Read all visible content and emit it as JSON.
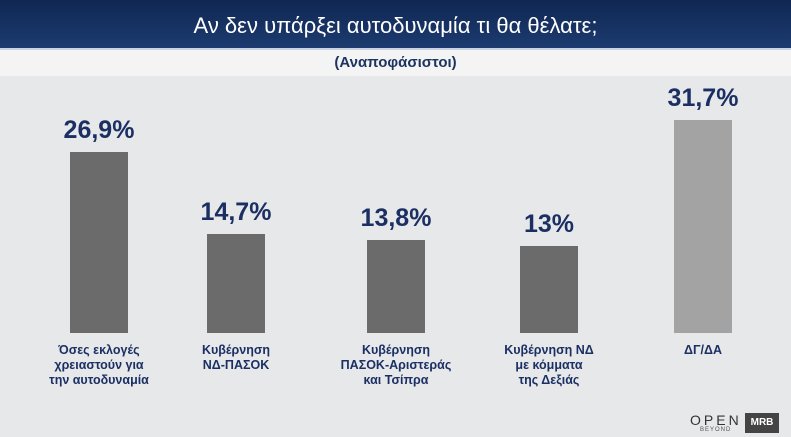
{
  "chart_data": {
    "type": "bar",
    "title": "Αν δεν υπάρξει αυτοδυναμία τι θα θέλατε;",
    "subtitle": "(Αναποφάσιστοι)",
    "categories": [
      "Όσες εκλογές\nχρειαστούν για\nτην αυτοδυναμία",
      "Κυβέρνηση\nΝΔ-ΠΑΣΟΚ",
      "Κυβέρνηση\nΠΑΣΟΚ-Αριστεράς\nκαι Τσίπρα",
      "Κυβέρνηση ΝΔ\nμε κόμματα\nτης Δεξιάς",
      "ΔΓ/ΔΑ"
    ],
    "values": [
      26.9,
      14.7,
      13.8,
      13,
      31.7
    ],
    "value_labels": [
      "26,9%",
      "14,7%",
      "13,8%",
      "13%",
      "31,7%"
    ],
    "colors": [
      "#6b6b6b",
      "#6b6b6b",
      "#6b6b6b",
      "#6b6b6b",
      "#a3a3a3"
    ]
  },
  "branding": {
    "channel": "OPEN",
    "channel_tagline": "BEYOND",
    "pollster": "MRB"
  }
}
